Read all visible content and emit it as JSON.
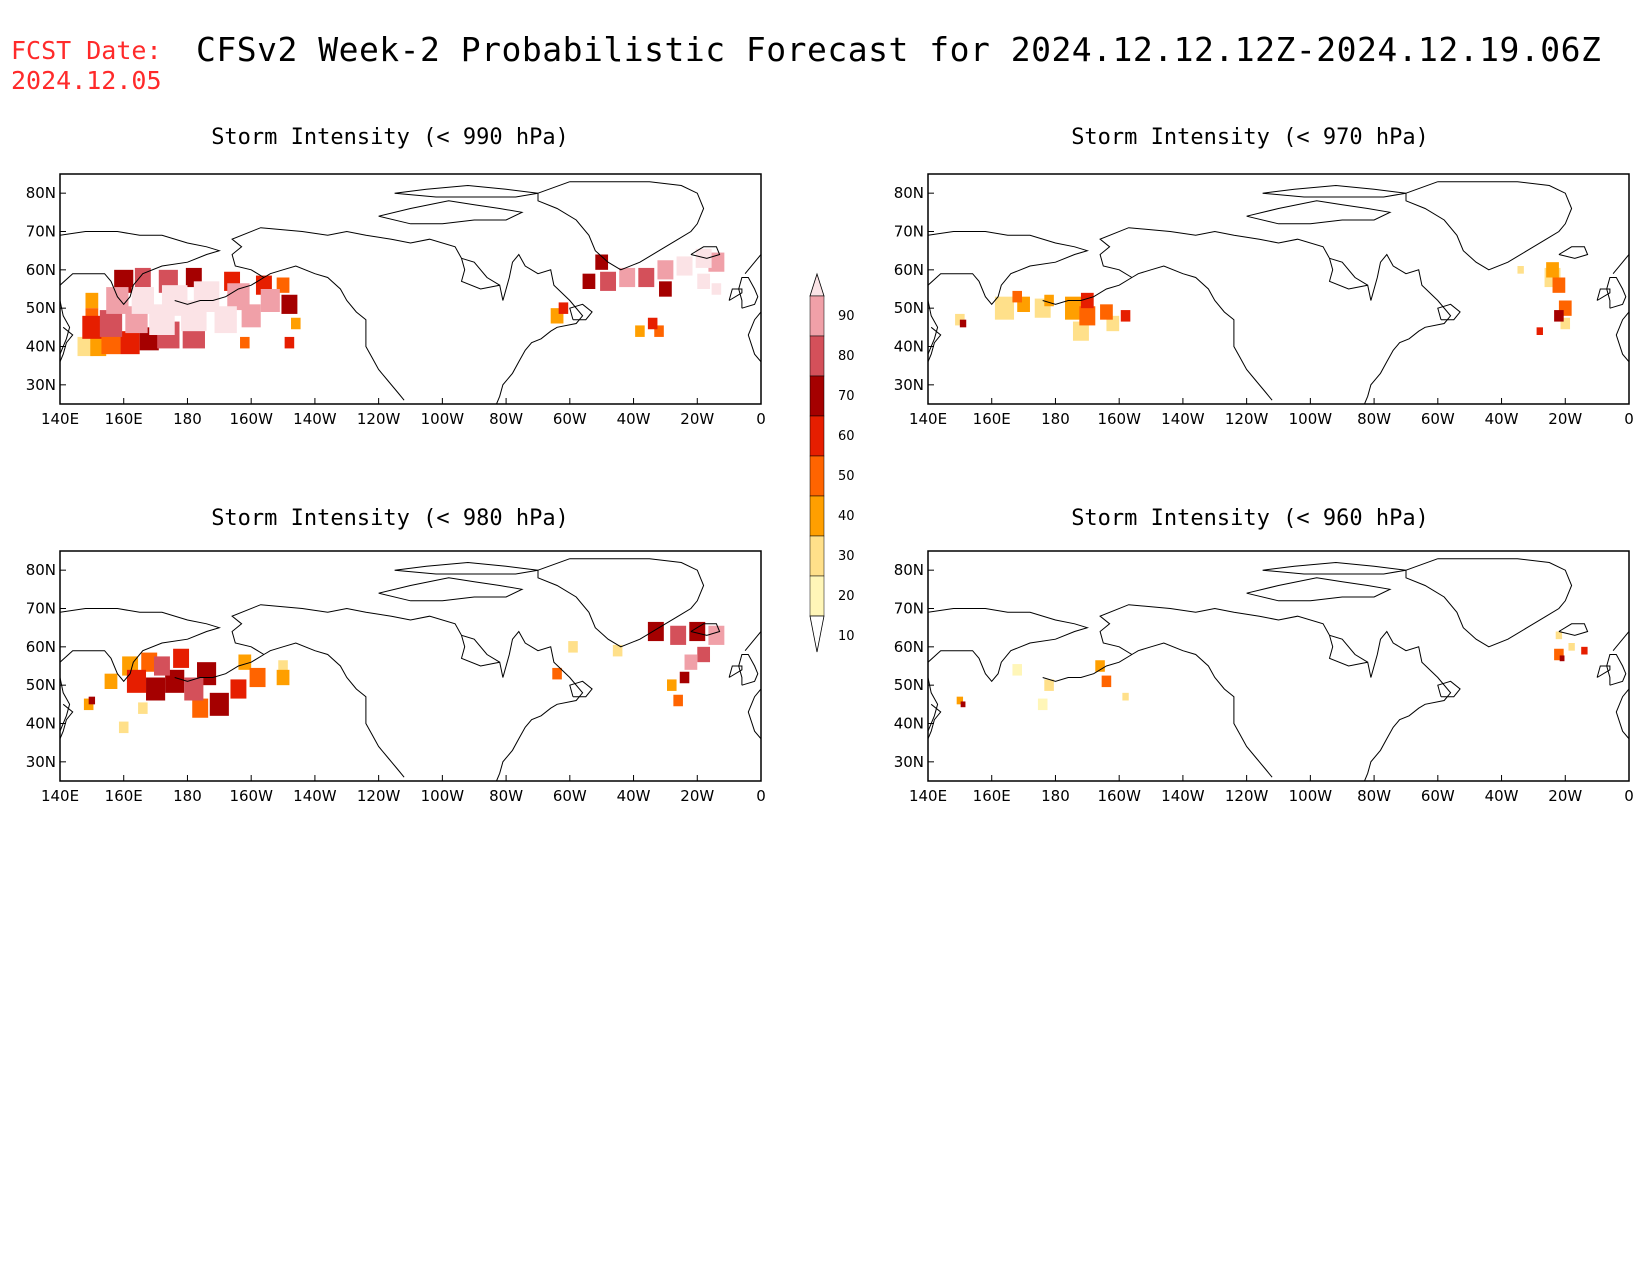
{
  "header": {
    "fcst_label": "FCST Date:",
    "fcst_date": "2024.12.05",
    "title": "CFSv2 Week-2 Probabilistic Forecast for 2024.12.12.12Z-2024.12.19.06Z"
  },
  "panels": [
    {
      "title": "Storm Intensity (< 990 hPa)"
    },
    {
      "title": "Storm Intensity (< 970 hPa)"
    },
    {
      "title": "Storm Intensity (< 980 hPa)"
    },
    {
      "title": "Storm Intensity (< 960 hPa)"
    }
  ],
  "axes": {
    "lat_labels": [
      "30N",
      "40N",
      "50N",
      "60N",
      "70N",
      "80N"
    ],
    "lat_values": [
      30,
      40,
      50,
      60,
      70,
      80
    ],
    "lon_labels": [
      "140E",
      "160E",
      "180",
      "160W",
      "140W",
      "120W",
      "100W",
      "80W",
      "60W",
      "40W",
      "20W",
      "0"
    ],
    "lon_values": [
      140,
      160,
      180,
      200,
      220,
      240,
      260,
      280,
      300,
      320,
      340,
      360
    ],
    "lon_range": [
      140,
      360
    ],
    "lat_range": [
      25,
      85
    ]
  },
  "colorbar": {
    "levels": [
      "10",
      "20",
      "30",
      "40",
      "50",
      "60",
      "70",
      "80",
      "90"
    ],
    "colors": [
      "#ffffff",
      "#fff6b8",
      "#ffe08a",
      "#ff9f00",
      "#ff6400",
      "#e61e00",
      "#a50000",
      "#d4505a",
      "#f0a0a8",
      "#fbe3e6"
    ]
  }
}
